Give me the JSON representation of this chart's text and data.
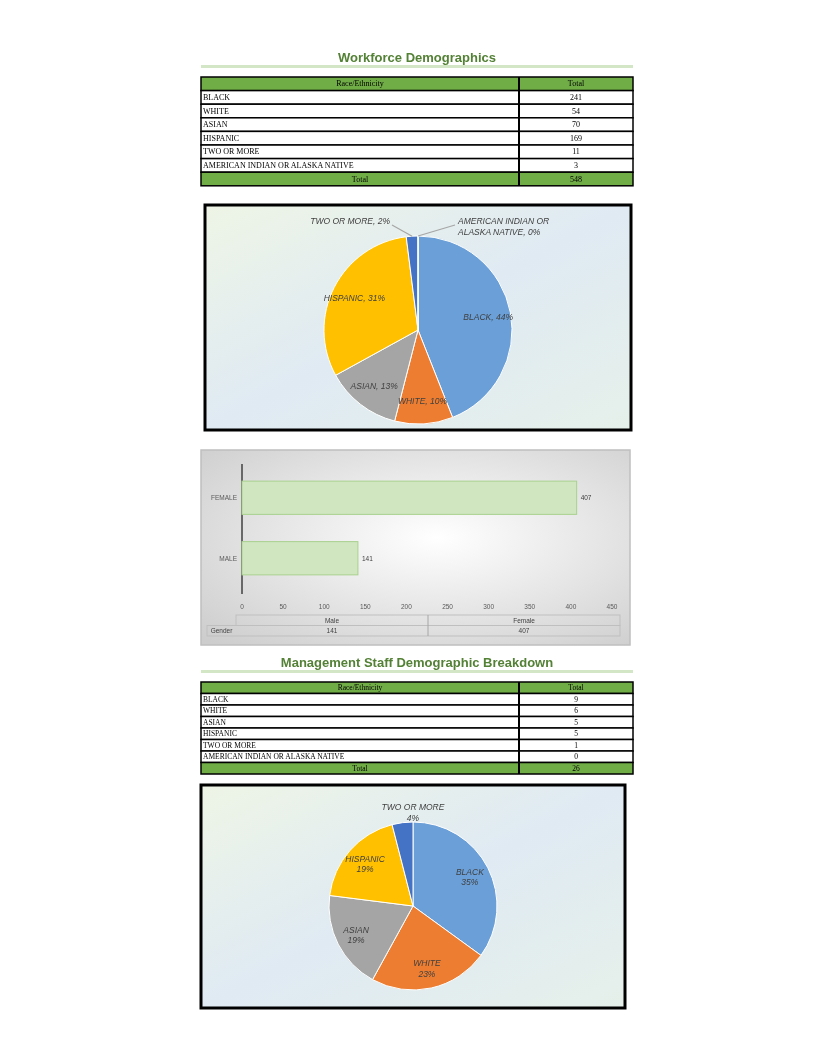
{
  "chart_data": [
    {
      "type": "other",
      "title": "Workforce Demographics",
      "xlabel": "Race/Ethnicity",
      "ylabel": "Total",
      "categories": [
        "BLACK",
        "WHITE",
        "ASIAN",
        "HISPANIC",
        "TWO OR MORE",
        "AMERICAN INDIAN OR ALASKA NATIVE",
        "Total"
      ],
      "values": [
        241,
        54,
        70,
        169,
        11,
        3,
        548
      ],
      "data_labels": true
    },
    {
      "type": "pie",
      "categories": [
        "BLACK",
        "WHITE",
        "ASIAN",
        "HISPANIC",
        "TWO OR MORE",
        "AMERICAN INDIAN OR ALASKA NATIVE"
      ],
      "values": [
        44,
        10,
        13,
        31,
        2,
        0
      ],
      "value_labels": [
        "44%",
        "10%",
        "13%",
        "31%",
        "2%",
        "0%"
      ],
      "colors": [
        "#6a9fd8",
        "#ed7d31",
        "#a5a5a5",
        "#ffc000",
        "#4472c4",
        "#70ad47"
      ]
    },
    {
      "type": "bar",
      "orientation": "horizontal",
      "categories": [
        "FEMALE",
        "MALE"
      ],
      "series": [
        {
          "color": "#cfe6c0",
          "values": [
            407,
            141
          ]
        }
      ],
      "xlim": [
        0,
        450
      ],
      "xticks": [
        0,
        50,
        100,
        150,
        200,
        250,
        300,
        350,
        400,
        450
      ],
      "data_labels": true
    },
    {
      "type": "other",
      "categories": [
        "Male",
        "Female"
      ],
      "series": [
        {
          "name": "Gender",
          "values": [
            141,
            407
          ]
        }
      ],
      "data_labels": true
    },
    {
      "type": "other",
      "title": "Management Staff Demographic Breakdown",
      "xlabel": "Race/Ethnicity",
      "ylabel": "Total",
      "categories": [
        "BLACK",
        "WHITE",
        "ASIAN",
        "HISPANIC",
        "TWO OR MORE",
        "AMERICAN INDIAN OR ALASKA NATIVE",
        "Total"
      ],
      "values": [
        9,
        6,
        5,
        5,
        1,
        0,
        26
      ],
      "data_labels": true
    },
    {
      "type": "pie",
      "categories": [
        "BLACK",
        "WHITE",
        "ASIAN",
        "HISPANIC",
        "TWO OR MORE"
      ],
      "values": [
        35,
        23,
        19,
        19,
        4
      ],
      "value_labels": [
        "35%",
        "23%",
        "19%",
        "19%",
        "4%"
      ],
      "colors": [
        "#6a9fd8",
        "#ed7d31",
        "#a5a5a5",
        "#ffc000",
        "#4472c4"
      ]
    }
  ]
}
